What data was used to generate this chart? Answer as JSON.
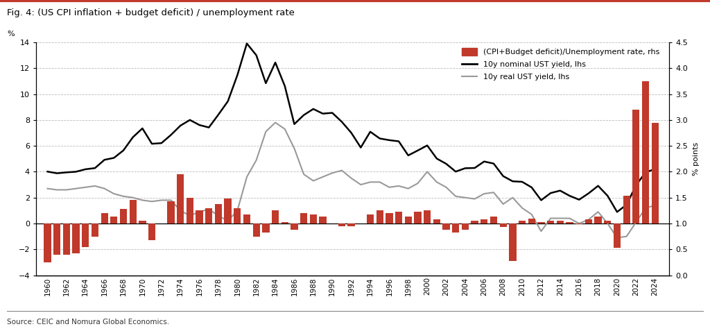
{
  "title": "Fig. 4: (US CPI inflation + budget deficit) / unemployment rate",
  "source": "Source: CEIC and Nomura Global Economics.",
  "ylabel_left": "%",
  "ylabel_right": "% points",
  "ylim_left": [
    -4,
    14
  ],
  "ylim_right": [
    0.0,
    4.5
  ],
  "yticks_left": [
    -4,
    -2,
    0,
    2,
    4,
    6,
    8,
    10,
    12,
    14
  ],
  "yticks_right": [
    0.0,
    0.5,
    1.0,
    1.5,
    2.0,
    2.5,
    3.0,
    3.5,
    4.0,
    4.5
  ],
  "background_color": "#ffffff",
  "bar_color": "#c0392b",
  "nominal_color": "#000000",
  "real_color": "#999999",
  "years": [
    1960,
    1961,
    1962,
    1963,
    1964,
    1965,
    1966,
    1967,
    1968,
    1969,
    1970,
    1971,
    1972,
    1973,
    1974,
    1975,
    1976,
    1977,
    1978,
    1979,
    1980,
    1981,
    1982,
    1983,
    1984,
    1985,
    1986,
    1987,
    1988,
    1989,
    1990,
    1991,
    1992,
    1993,
    1994,
    1995,
    1996,
    1997,
    1998,
    1999,
    2000,
    2001,
    2002,
    2003,
    2004,
    2005,
    2006,
    2007,
    2008,
    2009,
    2010,
    2011,
    2012,
    2013,
    2014,
    2015,
    2016,
    2017,
    2018,
    2019,
    2020,
    2021,
    2022,
    2023,
    2024
  ],
  "nominal_yield": [
    4.01,
    3.88,
    3.95,
    4.0,
    4.19,
    4.28,
    4.92,
    5.07,
    5.65,
    6.67,
    7.35,
    6.16,
    6.21,
    6.84,
    7.56,
    8.0,
    7.61,
    7.42,
    8.41,
    9.44,
    11.46,
    13.91,
    13.0,
    10.84,
    12.44,
    10.62,
    7.68,
    8.38,
    8.85,
    8.49,
    8.55,
    7.86,
    7.01,
    5.87,
    7.09,
    6.57,
    6.44,
    6.35,
    5.26,
    5.64,
    6.03,
    5.02,
    4.61,
    4.01,
    4.27,
    4.29,
    4.79,
    4.63,
    3.66,
    3.26,
    3.22,
    2.79,
    1.8,
    2.35,
    2.54,
    2.14,
    1.84,
    2.33,
    2.91,
    2.14,
    0.89,
    1.45,
    2.95,
    3.96,
    4.2
  ],
  "real_yield": [
    2.7,
    2.6,
    2.6,
    2.7,
    2.8,
    2.9,
    2.7,
    2.3,
    2.1,
    2.0,
    1.8,
    1.7,
    1.8,
    1.8,
    1.0,
    0.6,
    0.9,
    1.1,
    0.6,
    0.2,
    1.0,
    3.6,
    4.9,
    7.1,
    7.8,
    7.3,
    5.8,
    3.8,
    3.3,
    3.6,
    3.9,
    4.1,
    3.5,
    3.0,
    3.2,
    3.2,
    2.8,
    2.9,
    2.7,
    3.1,
    4.0,
    3.2,
    2.8,
    2.1,
    2.0,
    1.9,
    2.3,
    2.4,
    1.5,
    2.0,
    1.2,
    0.7,
    -0.6,
    0.4,
    0.4,
    0.4,
    0.0,
    0.3,
    0.9,
    0.0,
    -1.1,
    -1.0,
    0.1,
    1.2,
    1.4
  ],
  "bar_rhs": [
    0.25,
    0.4,
    0.4,
    0.42,
    0.55,
    0.75,
    1.2,
    1.13,
    1.28,
    1.45,
    1.05,
    0.68,
    1.0,
    1.43,
    1.95,
    1.5,
    1.25,
    1.3,
    1.38,
    1.48,
    1.3,
    1.18,
    0.75,
    0.83,
    1.25,
    1.03,
    0.88,
    1.2,
    1.18,
    1.13,
    1.0,
    0.95,
    0.95,
    1.0,
    1.18,
    1.25,
    1.2,
    1.23,
    1.13,
    1.23,
    1.25,
    1.08,
    0.88,
    0.83,
    0.88,
    1.05,
    1.08,
    1.13,
    0.93,
    0.28,
    1.05,
    1.1,
    1.03,
    1.05,
    1.05,
    1.03,
    0.98,
    1.08,
    1.13,
    1.05,
    0.53,
    1.53,
    3.2,
    3.75,
    2.95
  ],
  "legend_entries": [
    "(CPI+Budget deficit)/Unemployment rate, rhs",
    "10y nominal UST yield, lhs",
    "10y real UST yield, lhs"
  ]
}
